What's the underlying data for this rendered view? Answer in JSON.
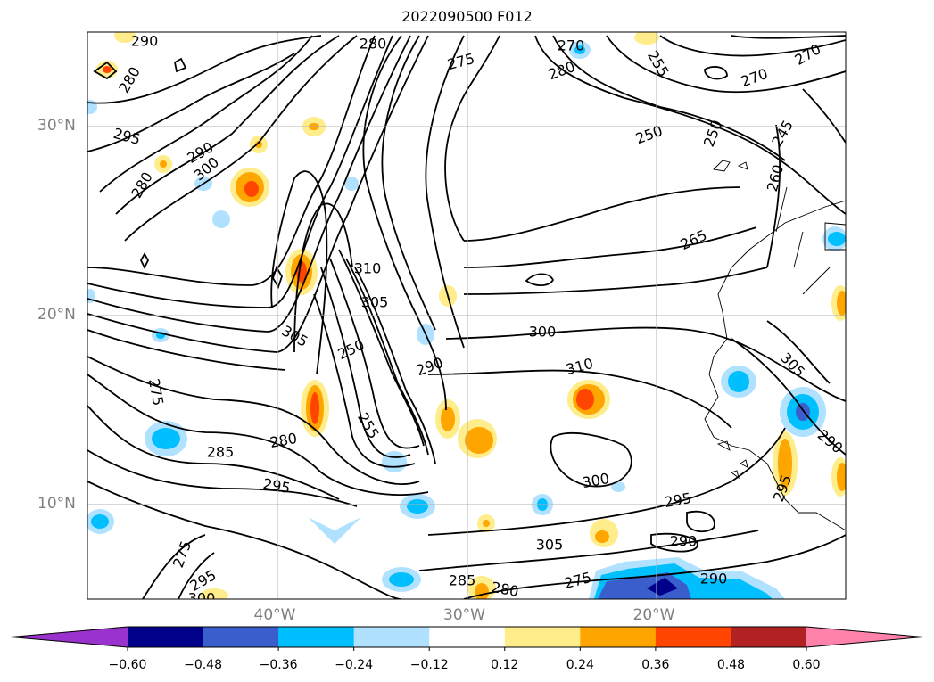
{
  "title": "2022090500 F012",
  "latitude_labels": [
    {
      "text": "30°N",
      "lat": 30
    },
    {
      "text": "20°N",
      "lat": 20
    },
    {
      "text": "10°N",
      "lat": 10
    }
  ],
  "longitude_labels": [
    {
      "text": "40°W",
      "lon": -40
    },
    {
      "text": "30°W",
      "lon": -30
    },
    {
      "text": "20°W",
      "lon": -20
    }
  ],
  "colorbar": {
    "colors": [
      "#9a32cd",
      "#00008b",
      "#3a5fcd",
      "#00bfff",
      "#b0e2ff",
      "#ffffff",
      "#ffec8b",
      "#ffa500",
      "#ff4500",
      "#b22222",
      "#ff82ab"
    ],
    "tick_labels": [
      "−0.60",
      "−0.48",
      "−0.36",
      "−0.24",
      "−0.12",
      "0.12",
      "0.24",
      "0.36",
      "0.48",
      "0.60"
    ]
  },
  "contour_labels": [
    "290",
    "280",
    "295",
    "290",
    "280",
    "300",
    "280",
    "280",
    "270",
    "275",
    "255",
    "250",
    "250",
    "245",
    "270",
    "270",
    "260",
    "265",
    "305",
    "310",
    "305",
    "250",
    "255",
    "275",
    "285",
    "295",
    "280",
    "300",
    "310",
    "300",
    "295",
    "305",
    "290",
    "295",
    "290",
    "305",
    "285",
    "280",
    "275",
    "290",
    "275",
    "295",
    "300",
    "290"
  ]
}
